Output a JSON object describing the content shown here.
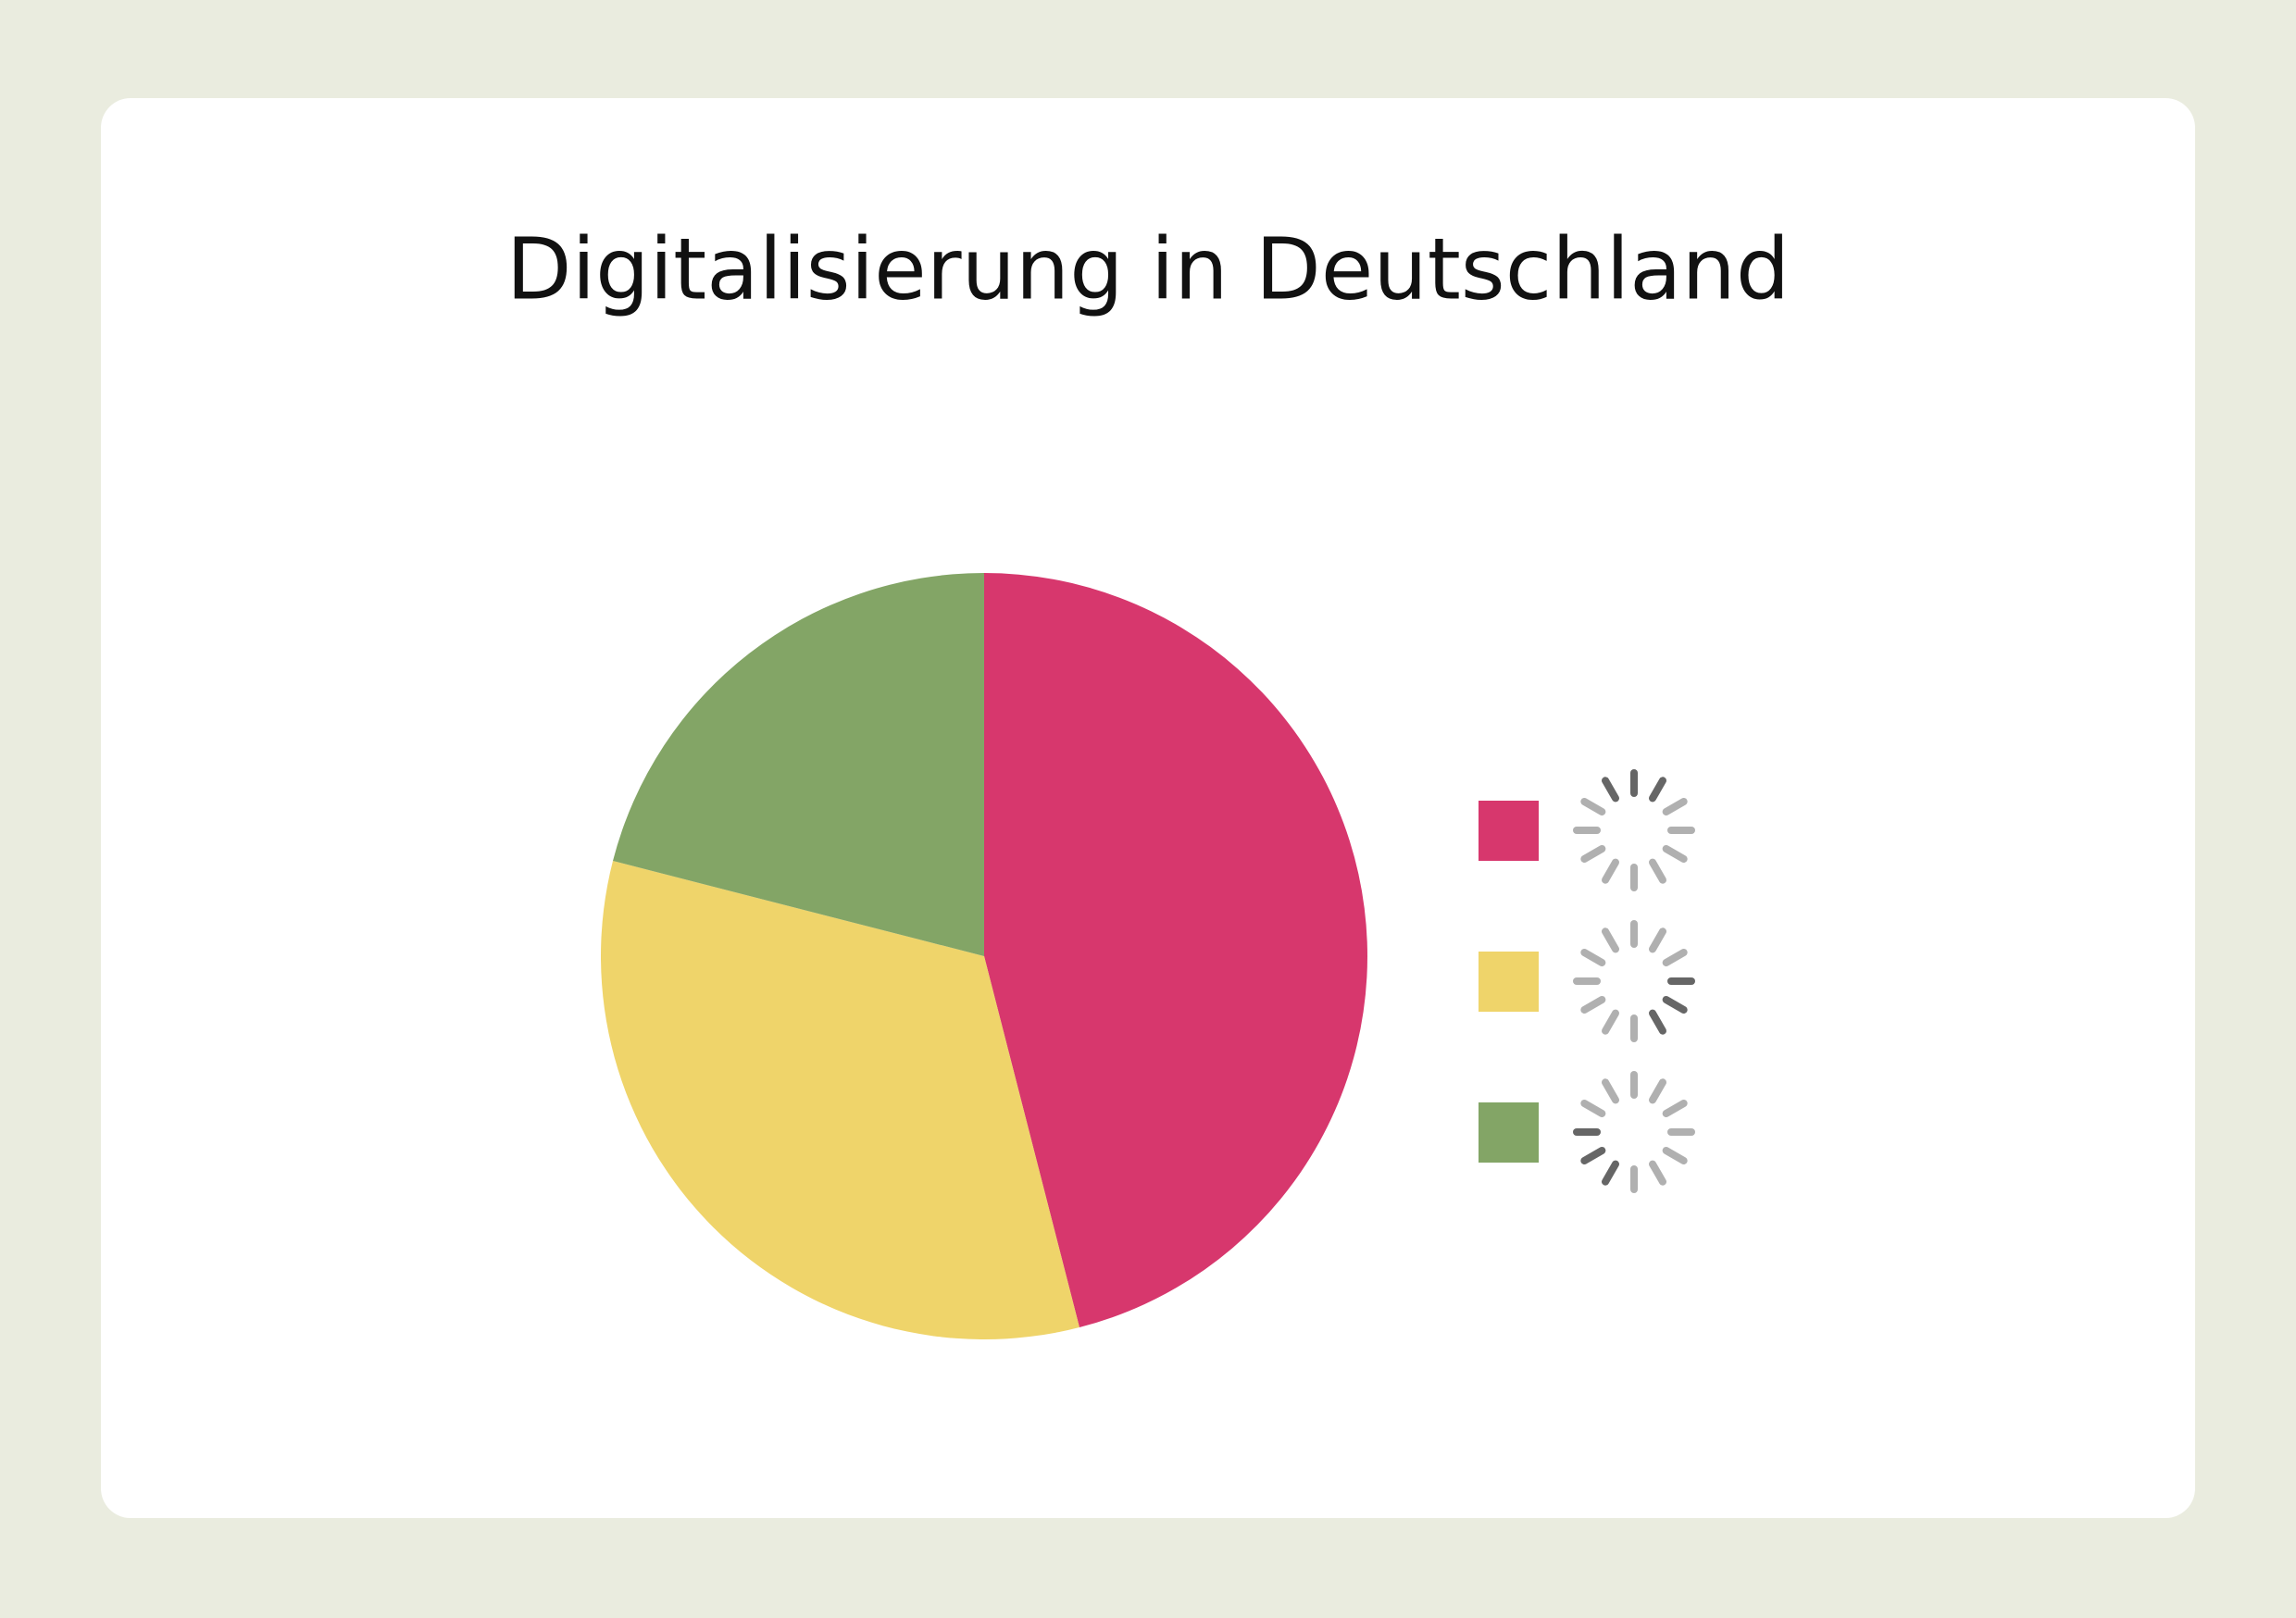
{
  "chart_data": {
    "type": "pie",
    "title": "Digitalisierung in Deutschland",
    "categories": [
      null,
      null,
      null
    ],
    "values": [
      46,
      33,
      21
    ],
    "colors": [
      "#d7376d",
      "#efd46a",
      "#83a566"
    ]
  }
}
